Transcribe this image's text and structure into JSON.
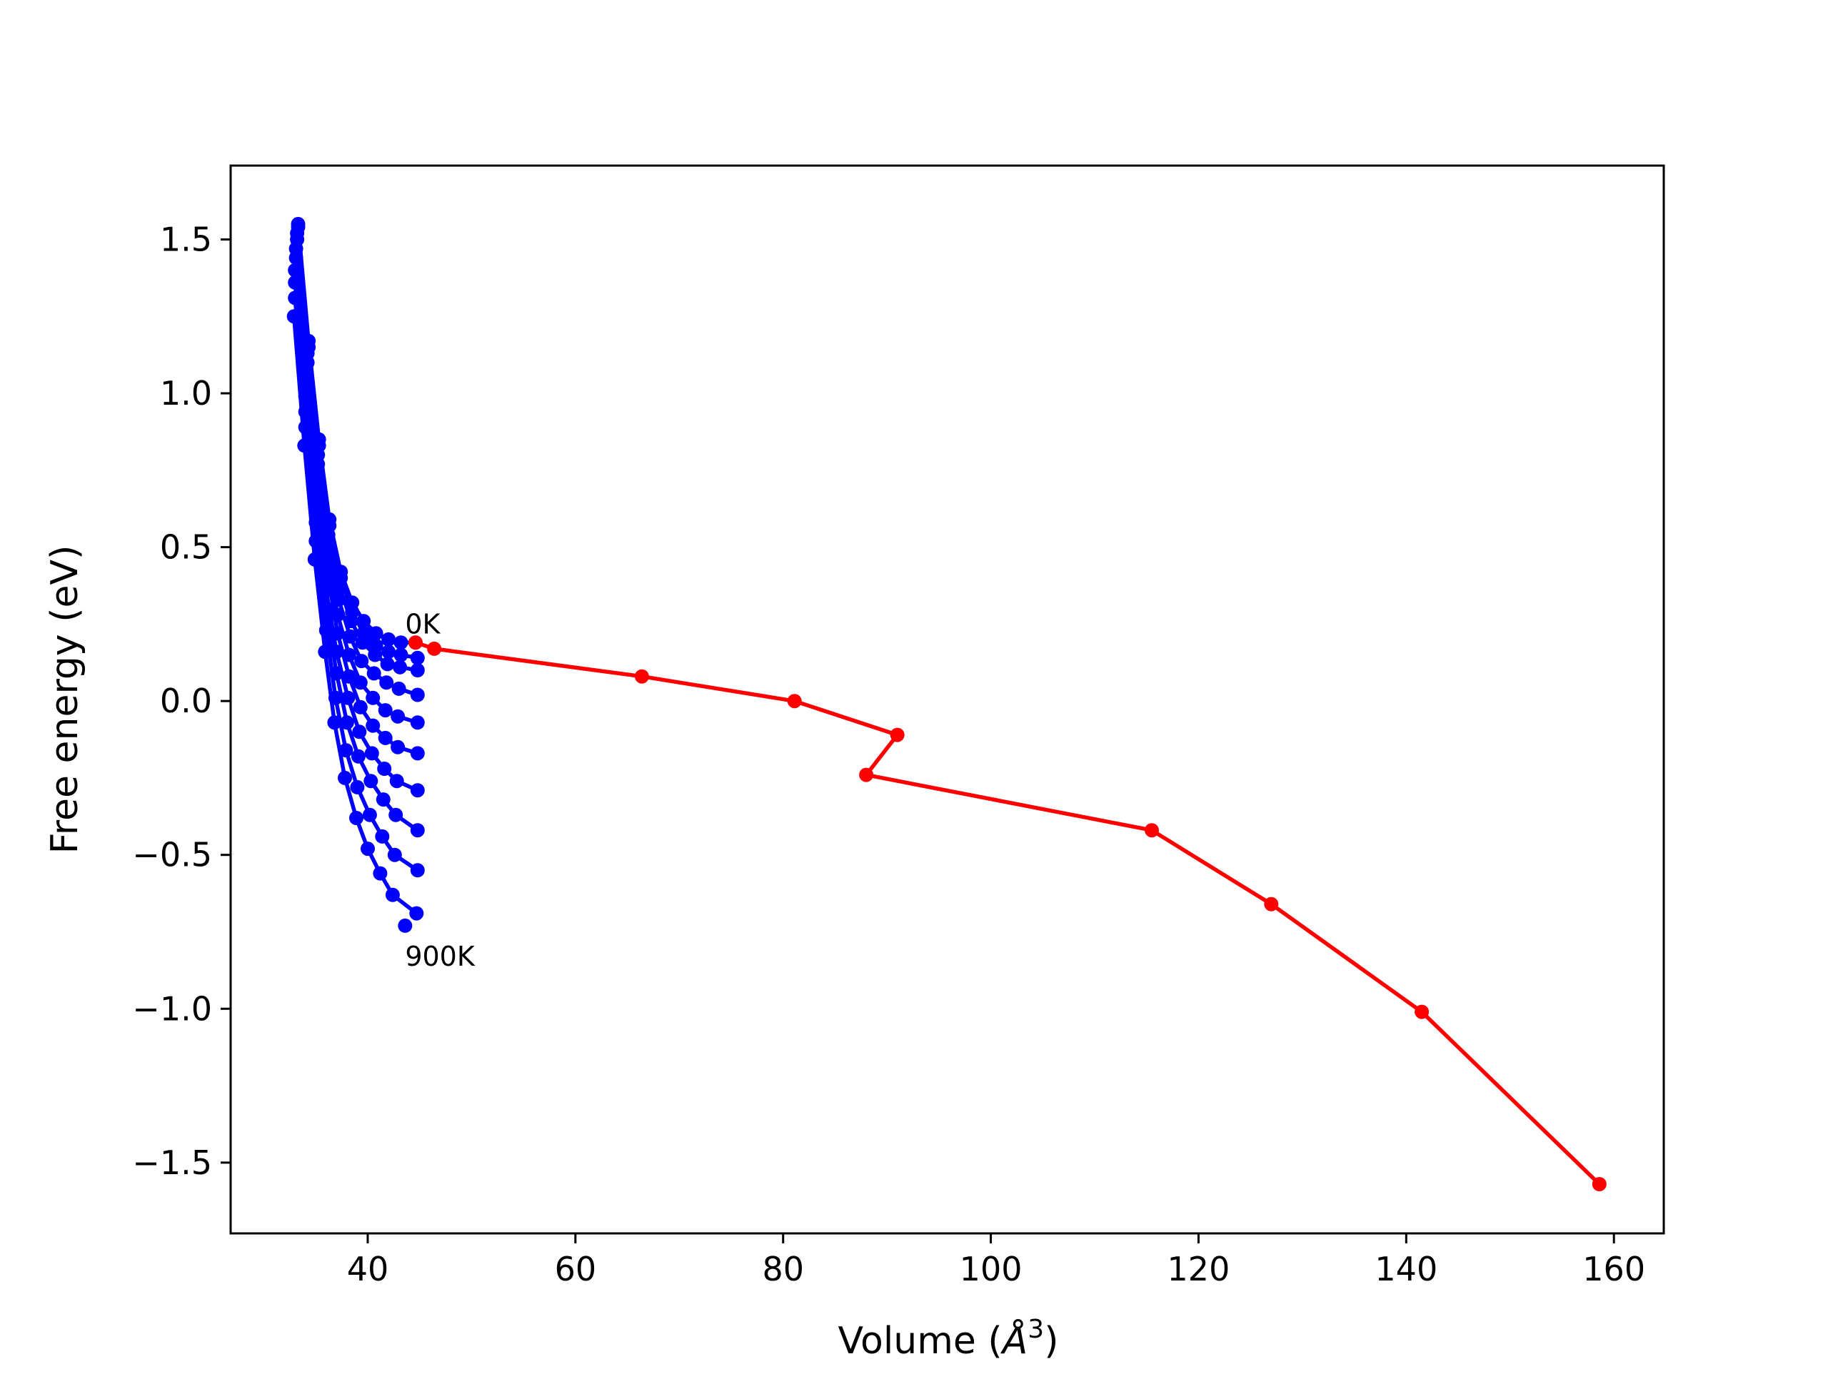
{
  "chart_data": {
    "type": "line",
    "xlabel_prefix": "Volume (",
    "xlabel_unit": "Å",
    "xlabel_sup": "3",
    "xlabel_suffix": ")",
    "ylabel": "Free energy (eV)",
    "xlim": [
      26.8,
      164.8
    ],
    "ylim": [
      -1.73,
      1.74
    ],
    "xticks": [
      40,
      60,
      80,
      100,
      120,
      140,
      160
    ],
    "xtick_labels": [
      "40",
      "60",
      "80",
      "100",
      "120",
      "140",
      "160"
    ],
    "yticks": [
      1.5,
      1.0,
      0.5,
      0.0,
      -0.5,
      -1.0,
      -1.5
    ],
    "ytick_labels": [
      "1.5",
      "1.0",
      "0.5",
      "0.0",
      "−0.5",
      "−1.0",
      "−1.5"
    ],
    "grid": false,
    "annotations": [
      {
        "text": "0K",
        "x": 43.6,
        "y": 0.22
      },
      {
        "text": "900K",
        "x": 43.6,
        "y": -0.86
      }
    ],
    "colors": {
      "blue_series": "#0000ff",
      "red_series": "#ff0000"
    },
    "series": [
      {
        "color": "blue",
        "marker": true,
        "x": [
          33.3,
          34.3,
          35.3,
          36.3,
          37.4,
          38.5,
          39.6,
          40.8,
          42.0,
          43.2,
          44.6
        ],
        "y": [
          1.55,
          1.17,
          0.85,
          0.59,
          0.42,
          0.32,
          0.26,
          0.22,
          0.2,
          0.19,
          0.19
        ]
      },
      {
        "color": "blue",
        "marker": true,
        "x": [
          33.3,
          34.3,
          35.3,
          36.3,
          37.4,
          38.5,
          39.6,
          40.8,
          42.0,
          43.2,
          44.8
        ],
        "y": [
          1.54,
          1.15,
          0.83,
          0.57,
          0.4,
          0.29,
          0.22,
          0.18,
          0.16,
          0.15,
          0.14
        ]
      },
      {
        "color": "blue",
        "marker": true,
        "x": [
          33.2,
          34.2,
          35.2,
          36.2,
          37.3,
          38.4,
          39.5,
          40.7,
          41.9,
          43.1,
          44.8
        ],
        "y": [
          1.52,
          1.13,
          0.8,
          0.54,
          0.37,
          0.26,
          0.19,
          0.15,
          0.12,
          0.11,
          0.1
        ]
      },
      {
        "color": "blue",
        "marker": true,
        "x": [
          33.2,
          34.2,
          35.2,
          36.2,
          37.2,
          38.3,
          39.4,
          40.6,
          41.8,
          43.0,
          44.8
        ],
        "y": [
          1.5,
          1.1,
          0.77,
          0.51,
          0.33,
          0.21,
          0.13,
          0.09,
          0.06,
          0.04,
          0.02
        ]
      },
      {
        "color": "blue",
        "marker": true,
        "x": [
          33.1,
          34.1,
          35.1,
          36.1,
          37.1,
          38.2,
          39.3,
          40.5,
          41.7,
          42.9,
          44.8
        ],
        "y": [
          1.47,
          1.07,
          0.73,
          0.47,
          0.28,
          0.15,
          0.06,
          0.01,
          -0.03,
          -0.05,
          -0.07
        ]
      },
      {
        "color": "blue",
        "marker": true,
        "x": [
          33.1,
          34.1,
          35.1,
          36.1,
          37.1,
          38.2,
          39.3,
          40.5,
          41.7,
          42.9,
          44.8
        ],
        "y": [
          1.44,
          1.03,
          0.69,
          0.42,
          0.22,
          0.08,
          -0.02,
          -0.08,
          -0.12,
          -0.15,
          -0.17
        ]
      },
      {
        "color": "blue",
        "marker": true,
        "x": [
          33.0,
          34.0,
          35.0,
          36.0,
          37.0,
          38.1,
          39.2,
          40.4,
          41.6,
          42.8,
          44.8
        ],
        "y": [
          1.4,
          0.99,
          0.64,
          0.36,
          0.16,
          0.01,
          -0.1,
          -0.17,
          -0.22,
          -0.26,
          -0.29
        ]
      },
      {
        "color": "blue",
        "marker": true,
        "x": [
          33.0,
          34.0,
          35.0,
          36.0,
          37.0,
          38.0,
          39.1,
          40.3,
          41.5,
          42.7,
          44.8
        ],
        "y": [
          1.36,
          0.94,
          0.58,
          0.3,
          0.09,
          -0.07,
          -0.18,
          -0.26,
          -0.32,
          -0.37,
          -0.42
        ]
      },
      {
        "color": "blue",
        "marker": true,
        "x": [
          33.0,
          34.0,
          35.0,
          36.0,
          36.9,
          37.9,
          39.0,
          40.2,
          41.4,
          42.6,
          44.8
        ],
        "y": [
          1.31,
          0.89,
          0.52,
          0.23,
          0.01,
          -0.16,
          -0.28,
          -0.37,
          -0.44,
          -0.5,
          -0.55
        ]
      },
      {
        "color": "blue",
        "marker": true,
        "x": [
          32.9,
          33.9,
          34.9,
          35.9,
          36.8,
          37.8,
          38.9,
          40.0,
          41.2,
          42.4,
          44.7
        ],
        "y": [
          1.25,
          0.83,
          0.46,
          0.16,
          -0.07,
          -0.25,
          -0.38,
          -0.48,
          -0.56,
          -0.63,
          -0.69
        ]
      },
      {
        "color": "blue",
        "marker": true,
        "x": [
          43.6
        ],
        "y": [
          -0.73
        ]
      },
      {
        "color": "red",
        "marker": true,
        "x": [
          44.6,
          46.4,
          66.4,
          81.1,
          91.0,
          88.0,
          115.5,
          127.0,
          141.5,
          158.6
        ],
        "y": [
          0.19,
          0.17,
          0.08,
          0.0,
          -0.11,
          -0.24,
          -0.42,
          -0.66,
          -1.01,
          -1.57
        ]
      }
    ]
  }
}
